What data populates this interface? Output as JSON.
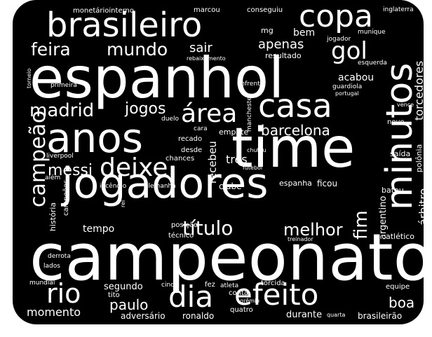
{
  "wordcloud": {
    "background_color": "#000000",
    "text_color": "#ffffff",
    "words": [
      {
        "text": "campeonato",
        "size": 92,
        "vertical": false
      },
      {
        "text": "espanhol",
        "size": 80,
        "vertical": false
      },
      {
        "text": "time",
        "size": 78,
        "vertical": false
      },
      {
        "text": "jogadores",
        "size": 60,
        "vertical": false
      },
      {
        "text": "anos",
        "size": 58,
        "vertical": false
      },
      {
        "text": "brasileiro",
        "size": 48,
        "vertical": false
      },
      {
        "text": "minutos",
        "size": 52,
        "vertical": true
      },
      {
        "text": "casa",
        "size": 46,
        "vertical": false
      },
      {
        "text": "copa",
        "size": 44,
        "vertical": false
      },
      {
        "text": "dia",
        "size": 42,
        "vertical": false
      },
      {
        "text": "efeito",
        "size": 42,
        "vertical": false
      },
      {
        "text": "rio",
        "size": 38,
        "vertical": false
      },
      {
        "text": "deixe",
        "size": 36,
        "vertical": false
      },
      {
        "text": "área",
        "size": 36,
        "vertical": false
      },
      {
        "text": "gol",
        "size": 34,
        "vertical": false
      },
      {
        "text": "campeão",
        "size": 30,
        "vertical": true
      },
      {
        "text": "título",
        "size": 28,
        "vertical": false
      },
      {
        "text": "madrid",
        "size": 26,
        "vertical": false
      },
      {
        "text": "mundo",
        "size": 25,
        "vertical": false
      },
      {
        "text": "feira",
        "size": 25,
        "vertical": false
      },
      {
        "text": "melhor",
        "size": 24,
        "vertical": false
      },
      {
        "text": "fim",
        "size": 26,
        "vertical": true
      },
      {
        "text": "jogos",
        "size": 22,
        "vertical": false
      },
      {
        "text": "messi",
        "size": 22,
        "vertical": false
      },
      {
        "text": "barcelona",
        "size": 20,
        "vertical": false
      },
      {
        "text": "paulo",
        "size": 20,
        "vertical": false
      },
      {
        "text": "boa",
        "size": 20,
        "vertical": false
      },
      {
        "text": "sair",
        "size": 18,
        "vertical": false
      },
      {
        "text": "apenas",
        "size": 18,
        "vertical": false
      },
      {
        "text": "torcedores",
        "size": 16,
        "vertical": true
      },
      {
        "text": "árbitro",
        "size": 16,
        "vertical": true
      },
      {
        "text": "momento",
        "size": 16,
        "vertical": false
      },
      {
        "text": "três",
        "size": 16,
        "vertical": false
      },
      {
        "text": "recebeu",
        "size": 15,
        "vertical": true
      },
      {
        "text": "bem",
        "size": 14,
        "vertical": false
      },
      {
        "text": "acabou",
        "size": 14,
        "vertical": false
      },
      {
        "text": "tempo",
        "size": 14,
        "vertical": false
      },
      {
        "text": "segundo",
        "size": 13,
        "vertical": false
      },
      {
        "text": "durante",
        "size": 13,
        "vertical": false
      },
      {
        "text": "argentino",
        "size": 13,
        "vertical": true
      },
      {
        "text": "clube",
        "size": 12,
        "vertical": false
      },
      {
        "text": "ficou",
        "size": 12,
        "vertical": false
      },
      {
        "text": "espanha",
        "size": 11,
        "vertical": false
      },
      {
        "text": "adversário",
        "size": 12,
        "vertical": false
      },
      {
        "text": "ronaldo",
        "size": 12,
        "vertical": false
      },
      {
        "text": "brasileirão",
        "size": 12,
        "vertical": false
      },
      {
        "text": "atlético",
        "size": 11,
        "vertical": false
      },
      {
        "text": "polônia",
        "size": 11,
        "vertical": true
      },
      {
        "text": "empate",
        "size": 11,
        "vertical": false
      },
      {
        "text": "mg",
        "size": 11,
        "vertical": false
      },
      {
        "text": "resultado",
        "size": 11,
        "vertical": false
      },
      {
        "text": "monetáriointerno",
        "size": 10,
        "vertical": false
      },
      {
        "text": "marcou",
        "size": 10,
        "vertical": false
      },
      {
        "text": "conseguiu",
        "size": 10,
        "vertical": false
      },
      {
        "text": "inglaterra",
        "size": 9,
        "vertical": false
      },
      {
        "text": "jogador",
        "size": 9,
        "vertical": false
      },
      {
        "text": "munique",
        "size": 9,
        "vertical": false
      },
      {
        "text": "rebaixamento",
        "size": 8,
        "vertical": false
      },
      {
        "text": "esquerda",
        "size": 9,
        "vertical": false
      },
      {
        "text": "torneio",
        "size": 8,
        "vertical": true
      },
      {
        "text": "primeira",
        "size": 9,
        "vertical": false
      },
      {
        "text": "enfrenta",
        "size": 9,
        "vertical": false
      },
      {
        "text": "guardiola",
        "size": 9,
        "vertical": false
      },
      {
        "text": "portugal",
        "size": 8,
        "vertical": false
      },
      {
        "text": "manchester",
        "size": 9,
        "vertical": true
      },
      {
        "text": "vence",
        "size": 8,
        "vertical": false
      },
      {
        "text": "duelo",
        "size": 9,
        "vertical": false
      },
      {
        "text": "cara",
        "size": 9,
        "vertical": false
      },
      {
        "text": "recado",
        "size": 10,
        "vertical": false
      },
      {
        "text": "desde",
        "size": 10,
        "vertical": false
      },
      {
        "text": "novo",
        "size": 10,
        "vertical": false
      },
      {
        "text": "liverpool",
        "size": 9,
        "vertical": false
      },
      {
        "text": "chances",
        "size": 10,
        "vertical": false
      },
      {
        "text": "chutou",
        "size": 8,
        "vertical": false
      },
      {
        "text": "futebol",
        "size": 8,
        "vertical": false
      },
      {
        "text": "saída",
        "size": 11,
        "vertical": false
      },
      {
        "text": "além",
        "size": 9,
        "vertical": false
      },
      {
        "text": "incêndio",
        "size": 9,
        "vertical": false
      },
      {
        "text": "alemanha",
        "size": 9,
        "vertical": false
      },
      {
        "text": "bateu",
        "size": 11,
        "vertical": false
      },
      {
        "text": "campeões",
        "size": 10,
        "vertical": true
      },
      {
        "text": "história",
        "size": 11,
        "vertical": true
      },
      {
        "text": "rei",
        "size": 8,
        "vertical": true
      },
      {
        "text": "posição",
        "size": 10,
        "vertical": false
      },
      {
        "text": "técnico",
        "size": 10,
        "vertical": false
      },
      {
        "text": "treinador",
        "size": 8,
        "vertical": false
      },
      {
        "text": "derrota",
        "size": 9,
        "vertical": false
      },
      {
        "text": "lados",
        "size": 9,
        "vertical": false
      },
      {
        "text": "mundial",
        "size": 9,
        "vertical": false
      },
      {
        "text": "cinco",
        "size": 9,
        "vertical": false
      },
      {
        "text": "fez",
        "size": 10,
        "vertical": false
      },
      {
        "text": "atleta",
        "size": 9,
        "vertical": false
      },
      {
        "text": "torcida",
        "size": 10,
        "vertical": false
      },
      {
        "text": "conta",
        "size": 10,
        "vertical": false
      },
      {
        "text": "equipe",
        "size": 10,
        "vertical": false
      },
      {
        "text": "tito",
        "size": 10,
        "vertical": false
      },
      {
        "text": "grêmio",
        "size": 8,
        "vertical": false
      },
      {
        "text": "quatro",
        "size": 10,
        "vertical": false
      },
      {
        "text": "quarta",
        "size": 8,
        "vertical": false
      }
    ]
  }
}
